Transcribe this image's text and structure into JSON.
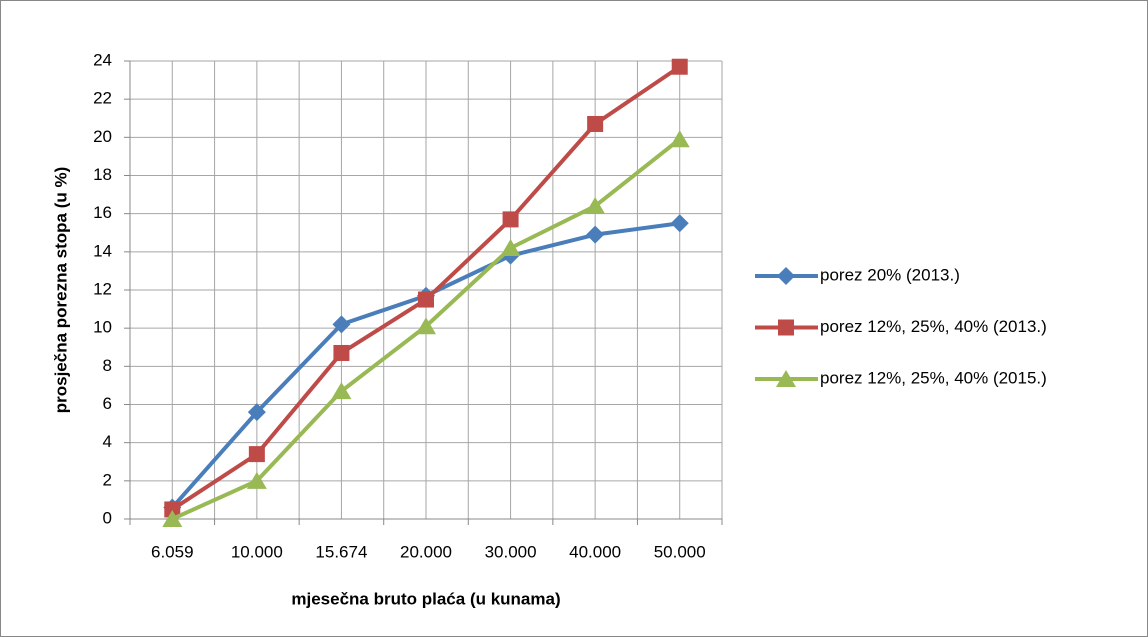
{
  "chart_data": {
    "type": "line",
    "x_label": "mjesečna bruto plaća (u kunama)",
    "y_label": "prosječna porezna stopa (u %)",
    "categories": [
      "6.059",
      "10.000",
      "15.674",
      "20.000",
      "30.000",
      "40.000",
      "50.000"
    ],
    "series": [
      {
        "name": "porez 20% (2013.)",
        "color": "#4a7ebb",
        "marker": "diamond",
        "values": [
          0.6,
          5.6,
          10.2,
          11.7,
          13.8,
          14.9,
          15.5
        ]
      },
      {
        "name": "porez 12%, 25%, 40% (2013.)",
        "color": "#be4b48",
        "marker": "square",
        "values": [
          0.5,
          3.4,
          8.7,
          11.5,
          15.7,
          20.7,
          23.7
        ]
      },
      {
        "name": "porez 12%, 25%, 40% (2015.)",
        "color": "#98b954",
        "marker": "triangle",
        "values": [
          0,
          2.0,
          6.7,
          10.1,
          14.2,
          16.4,
          19.9
        ]
      }
    ],
    "ylim": [
      0,
      24
    ],
    "yticks": [
      0,
      2,
      4,
      6,
      8,
      10,
      12,
      14,
      16,
      18,
      20,
      22,
      24
    ],
    "grid": true,
    "legend": "right"
  }
}
